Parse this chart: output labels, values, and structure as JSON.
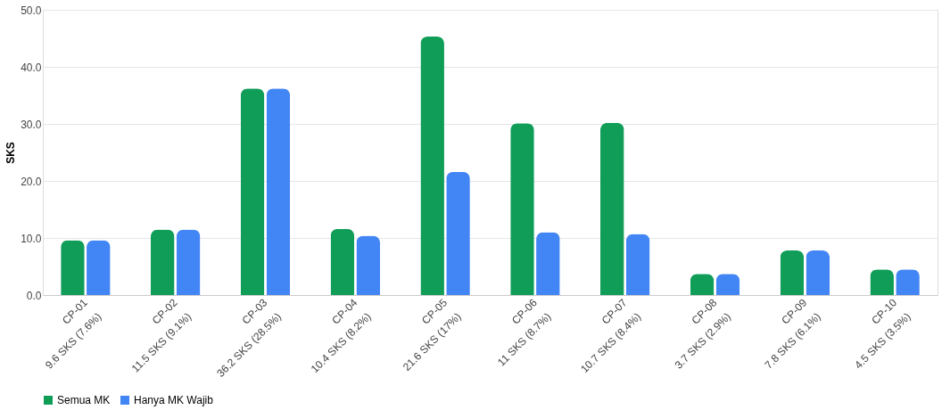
{
  "chart_data": {
    "type": "bar",
    "ylabel": "SKS",
    "categories": [
      "CP-01\n9.6 SKS (7.6%)",
      "CP-02\n11.5 SKS (9.1%)",
      "CP-03\n36.2 SKS (28.5%)",
      "CP-04\n10.4 SKS (8.2%)",
      "CP-05\n21.6 SKS (17%)",
      "CP-06\n11 SKS (8.7%)",
      "CP-07\n10.7 SKS (8.4%)",
      "CP-08\n3.7 SKS (2.9%)",
      "CP-09\n7.8 SKS (6.1%)",
      "CP-10\n4.5 SKS (3.5%)"
    ],
    "series": [
      {
        "name": "Semua MK",
        "color": "#0f9d58",
        "values": [
          9.6,
          11.5,
          36.2,
          11.6,
          45.3,
          30.1,
          30.2,
          3.7,
          7.8,
          4.5
        ]
      },
      {
        "name": "Hanya MK Wajib",
        "color": "#4285f4",
        "values": [
          9.6,
          11.5,
          36.2,
          10.4,
          21.6,
          11,
          10.7,
          3.7,
          7.8,
          4.5
        ]
      }
    ],
    "ylim": [
      0,
      50
    ],
    "yticks": [
      {
        "value": 0,
        "label": "0.0"
      },
      {
        "value": 10,
        "label": "10.0"
      },
      {
        "value": 20,
        "label": "20.0"
      },
      {
        "value": 30,
        "label": "30.0"
      },
      {
        "value": 40,
        "label": "40.0"
      },
      {
        "value": 50,
        "label": "50.0"
      }
    ],
    "grid": "y",
    "legend": "bottom"
  }
}
